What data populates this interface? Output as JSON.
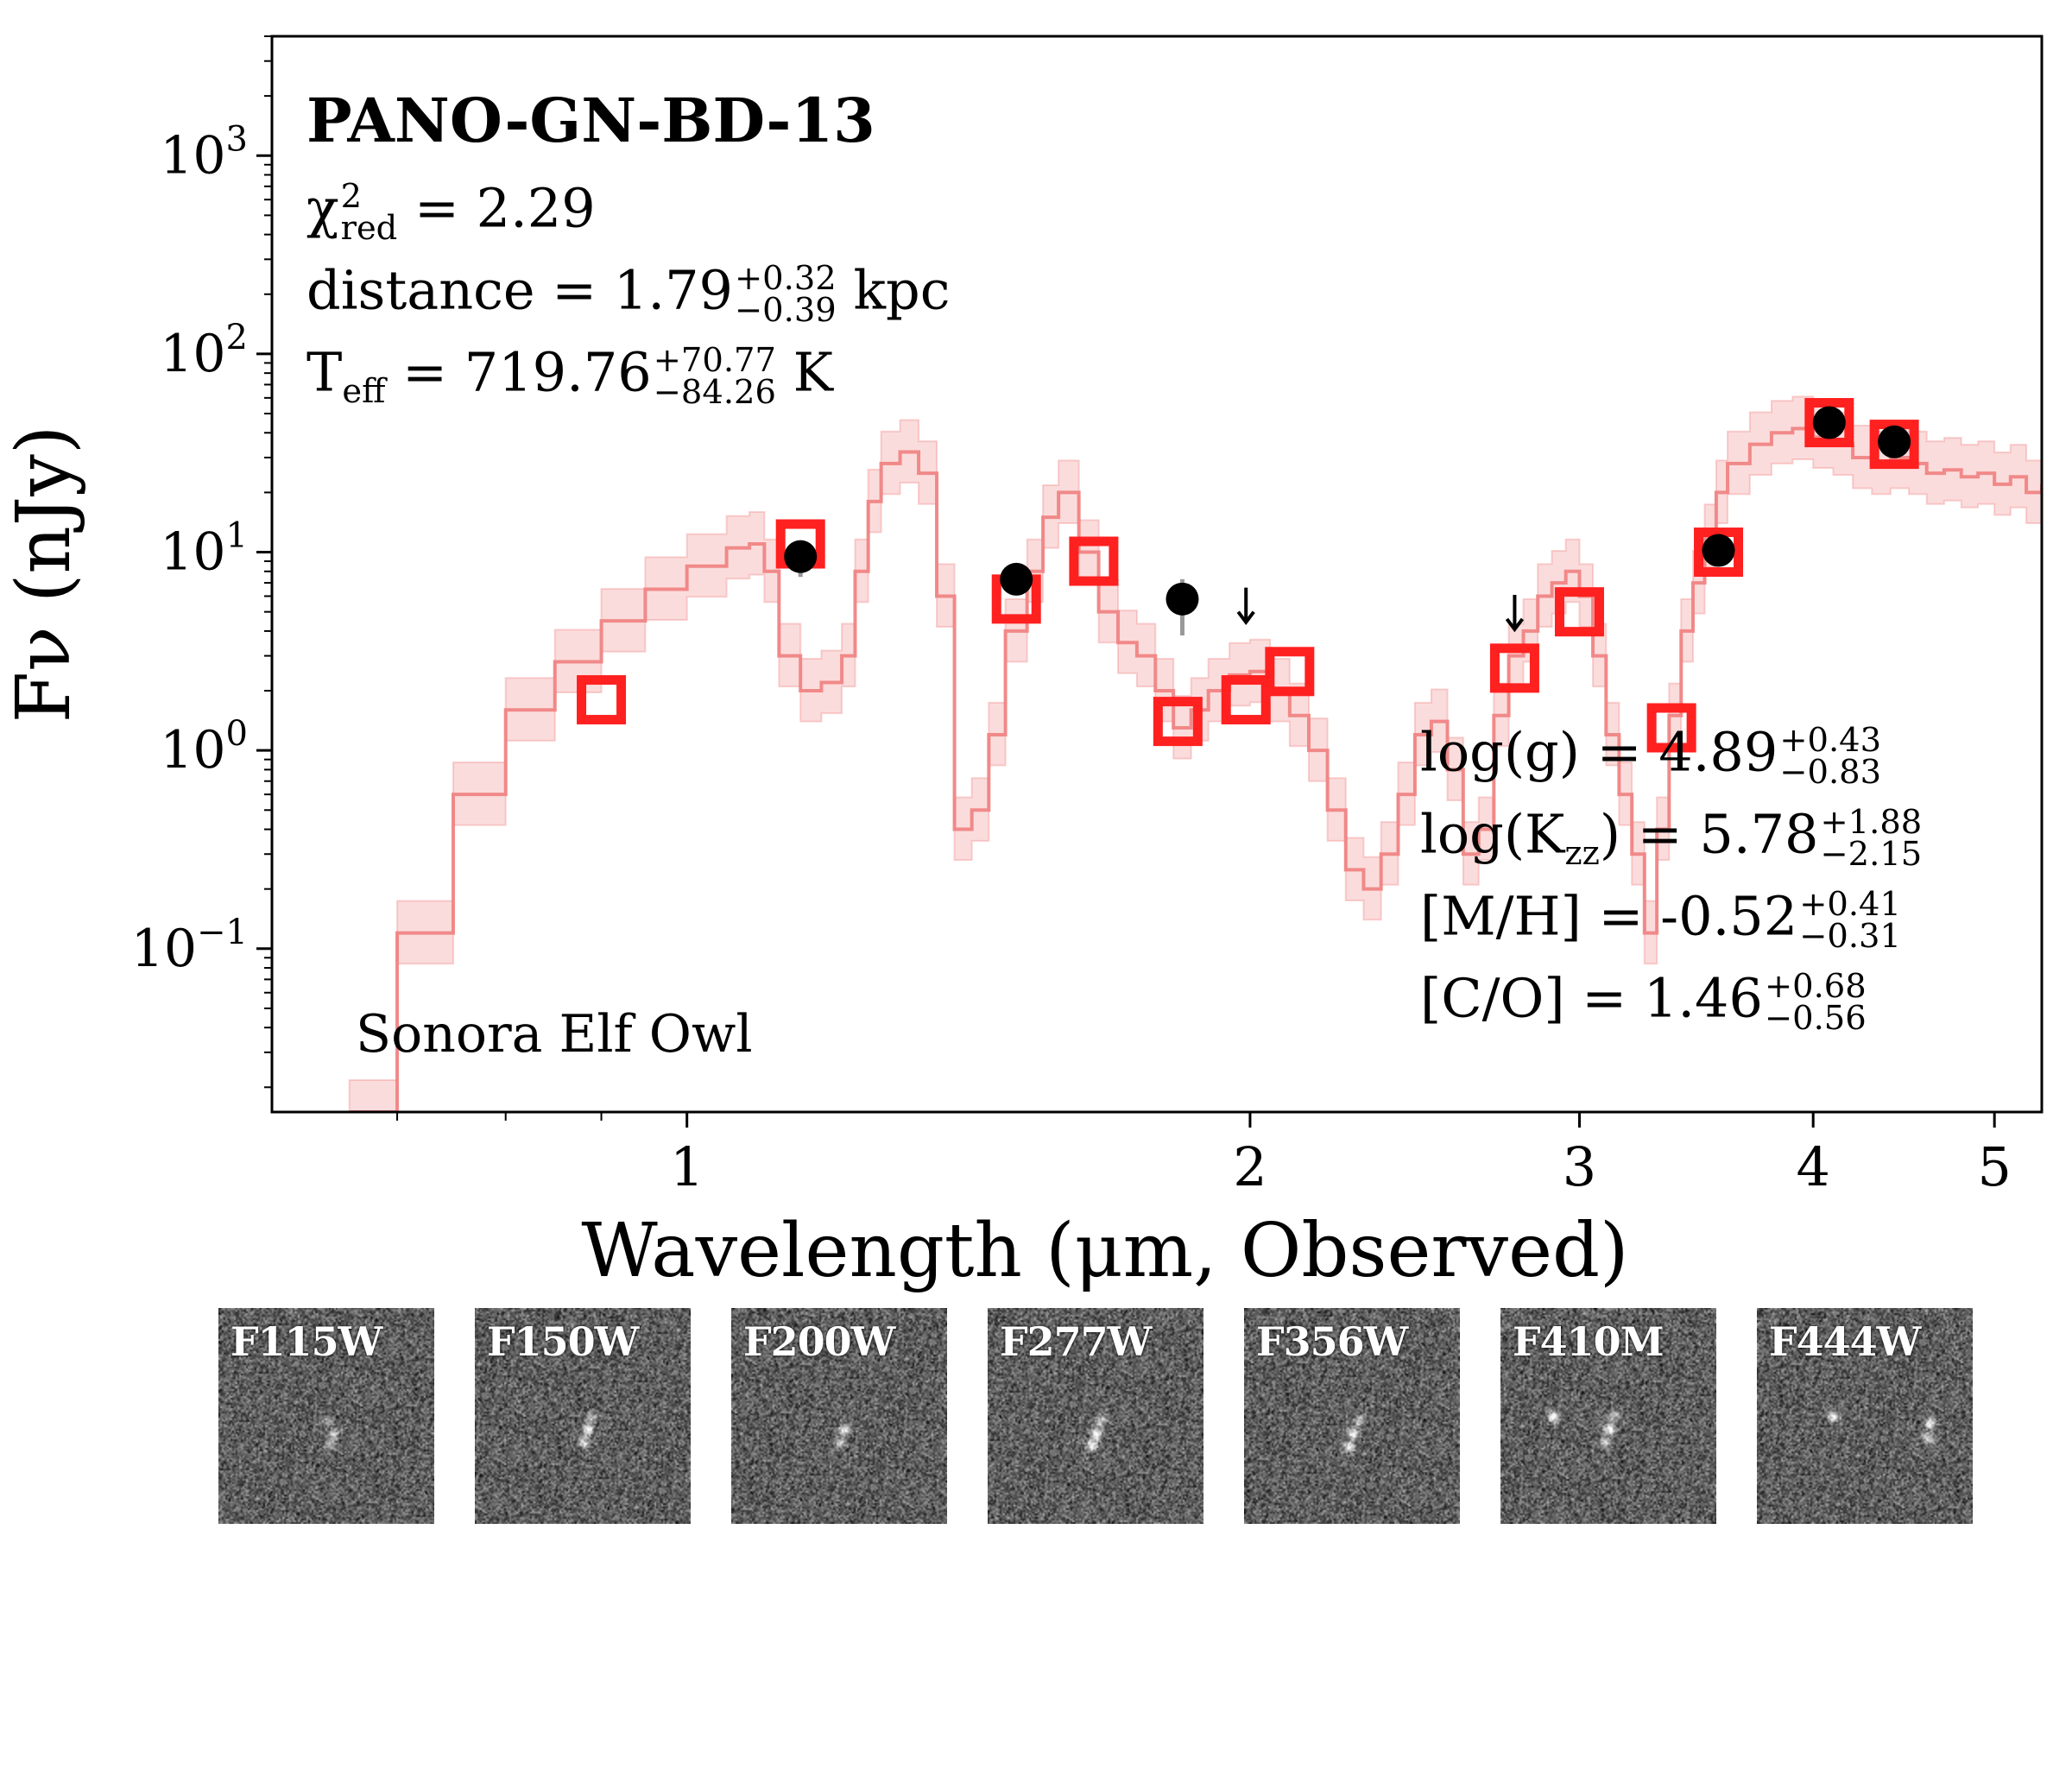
{
  "chart_data": {
    "type": "scatter",
    "title": "PANO-GN-BD-13",
    "xlabel": "Wavelength (μm, Observed)",
    "ylabel": "Fν (nJy)",
    "xscale": "log",
    "yscale": "log",
    "xlim": [
      0.6,
      5.3
    ],
    "ylim": [
      0.015,
      4000
    ],
    "xticks": [
      {
        "value": 1,
        "label": "1"
      },
      {
        "value": 2,
        "label": "2"
      },
      {
        "value": 3,
        "label": "3"
      },
      {
        "value": 4,
        "label": "4"
      },
      {
        "value": 5,
        "label": "5"
      }
    ],
    "yticks": [
      {
        "value": 0.1,
        "base": "10",
        "exp": "−1"
      },
      {
        "value": 1,
        "base": "10",
        "exp": "0"
      },
      {
        "value": 10,
        "base": "10",
        "exp": "1"
      },
      {
        "value": 100,
        "base": "10",
        "exp": "2"
      },
      {
        "value": 1000,
        "base": "10",
        "exp": "3"
      }
    ],
    "model_label": "Sonora Elf Owl",
    "model_spectrum": {
      "name": "Sonora Elf Owl model",
      "color": "#f08080",
      "x": [
        0.66,
        0.7,
        0.75,
        0.8,
        0.85,
        0.9,
        0.95,
        1.0,
        1.05,
        1.08,
        1.1,
        1.12,
        1.15,
        1.18,
        1.21,
        1.23,
        1.25,
        1.27,
        1.3,
        1.33,
        1.36,
        1.39,
        1.42,
        1.45,
        1.48,
        1.52,
        1.55,
        1.58,
        1.62,
        1.66,
        1.7,
        1.74,
        1.78,
        1.82,
        1.86,
        1.9,
        1.95,
        2.0,
        2.05,
        2.1,
        2.15,
        2.2,
        2.25,
        2.3,
        2.35,
        2.4,
        2.45,
        2.5,
        2.55,
        2.6,
        2.65,
        2.7,
        2.75,
        2.8,
        2.85,
        2.9,
        2.95,
        3.0,
        3.05,
        3.1,
        3.15,
        3.2,
        3.25,
        3.3,
        3.35,
        3.4,
        3.45,
        3.5,
        3.55,
        3.6,
        3.7,
        3.8,
        3.9,
        4.0,
        4.1,
        4.2,
        4.3,
        4.4,
        4.5,
        4.6,
        4.7,
        4.8,
        4.9,
        5.0,
        5.1,
        5.2,
        5.3
      ],
      "y": [
        0.015,
        0.12,
        0.6,
        1.6,
        2.8,
        4.5,
        6.5,
        8.5,
        10.5,
        11,
        8,
        3,
        2,
        2.2,
        3,
        8,
        18,
        28,
        32,
        25,
        6,
        0.4,
        0.5,
        1.2,
        4,
        8,
        15,
        20,
        10,
        5,
        3.5,
        3,
        2,
        1.3,
        1.6,
        2,
        2.4,
        2.5,
        2,
        1.5,
        1,
        0.5,
        0.25,
        0.2,
        0.3,
        0.6,
        1.2,
        1.4,
        0.8,
        0.3,
        0.4,
        1.5,
        3,
        4,
        6,
        7,
        8,
        6,
        3,
        1.2,
        0.6,
        0.3,
        0.12,
        0.4,
        1.5,
        4,
        7,
        12,
        20,
        28,
        35,
        40,
        42,
        38,
        35,
        30,
        28,
        30,
        28,
        25,
        26,
        24,
        25,
        22,
        24,
        20,
        22
      ]
    },
    "model_photometry": {
      "name": "Model photometry",
      "marker": "open-square",
      "color": "#ff2020",
      "x": [
        0.9,
        1.15,
        1.5,
        1.65,
        1.83,
        1.99,
        2.1,
        2.77,
        3.0,
        3.36,
        3.56,
        4.08,
        4.42
      ],
      "y": [
        1.8,
        11,
        5.8,
        9,
        1.4,
        1.8,
        2.5,
        2.6,
        5.0,
        1.3,
        10,
        45,
        35
      ]
    },
    "observed_photometry": {
      "name": "Observed photometry",
      "marker": "filled-circle",
      "color": "#000000",
      "x": [
        1.15,
        1.5,
        1.84,
        3.56,
        4.08,
        4.42
      ],
      "y": [
        9.5,
        7.3,
        5.8,
        10.2,
        45,
        36
      ],
      "yerr_low": [
        2.0,
        1.0,
        2.0,
        0.8,
        3,
        3
      ],
      "yerr_high": [
        1.5,
        1.0,
        1.5,
        0.8,
        3,
        3
      ]
    },
    "upper_limits": {
      "name": "Upper limits",
      "marker": "down-arrow",
      "x": [
        1.99,
        2.77
      ],
      "y": [
        5.0,
        4.6
      ]
    }
  },
  "annotations": {
    "object_name": "PANO-GN-BD-13",
    "chi2": {
      "symbol": "χ",
      "sup": "2",
      "sub": "red",
      "value": "= 2.29"
    },
    "distance": {
      "label": "distance = 1.79",
      "plus": "+0.32",
      "minus": "−0.39",
      "unit": "kpc"
    },
    "teff": {
      "label": "T",
      "sub": "eff",
      "value": "= 719.76",
      "plus": "+70.77",
      "minus": "−84.26",
      "unit": "K"
    },
    "logg": {
      "label": "log(g) = 4.89",
      "plus": "+0.43",
      "minus": "−0.83"
    },
    "logkzz": {
      "label": "log(K",
      "sub": "zz",
      "value": ") = 5.78",
      "plus": "+1.88",
      "minus": "−2.15"
    },
    "mh": {
      "label": "[M/H] = -0.52",
      "plus": "+0.41",
      "minus": "−0.31"
    },
    "co": {
      "label": "[C/O] = 1.46",
      "plus": "+0.68",
      "minus": "−0.56"
    }
  },
  "cutouts": [
    {
      "filter": "F115W",
      "seed": 11,
      "sources": [
        {
          "dx": 0.53,
          "dy": 0.58,
          "amp": 0.55
        },
        {
          "dx": 0.51,
          "dy": 0.63,
          "amp": 0.4
        },
        {
          "dx": 0.5,
          "dy": 0.52,
          "amp": 0.3
        }
      ]
    },
    {
      "filter": "F150W",
      "seed": 22,
      "sources": [
        {
          "dx": 0.52,
          "dy": 0.56,
          "amp": 0.9
        },
        {
          "dx": 0.5,
          "dy": 0.62,
          "amp": 0.7
        },
        {
          "dx": 0.54,
          "dy": 0.5,
          "amp": 0.5
        }
      ]
    },
    {
      "filter": "F200W",
      "seed": 33,
      "sources": [
        {
          "dx": 0.52,
          "dy": 0.56,
          "amp": 0.8
        },
        {
          "dx": 0.5,
          "dy": 0.62,
          "amp": 0.6
        }
      ]
    },
    {
      "filter": "F277W",
      "seed": 44,
      "sources": [
        {
          "dx": 0.5,
          "dy": 0.58,
          "amp": 1.0
        },
        {
          "dx": 0.48,
          "dy": 0.63,
          "amp": 0.9
        },
        {
          "dx": 0.52,
          "dy": 0.52,
          "amp": 0.6
        }
      ]
    },
    {
      "filter": "F356W",
      "seed": 55,
      "sources": [
        {
          "dx": 0.5,
          "dy": 0.58,
          "amp": 0.9
        },
        {
          "dx": 0.48,
          "dy": 0.64,
          "amp": 0.8
        },
        {
          "dx": 0.53,
          "dy": 0.52,
          "amp": 0.6
        }
      ]
    },
    {
      "filter": "F410M",
      "seed": 66,
      "sources": [
        {
          "dx": 0.5,
          "dy": 0.56,
          "amp": 1.0
        },
        {
          "dx": 0.48,
          "dy": 0.62,
          "amp": 0.7
        },
        {
          "dx": 0.52,
          "dy": 0.5,
          "amp": 0.6
        },
        {
          "dx": 0.24,
          "dy": 0.5,
          "amp": 1.0
        }
      ]
    },
    {
      "filter": "F444W",
      "seed": 77,
      "sources": [
        {
          "dx": 0.8,
          "dy": 0.53,
          "amp": 0.9
        },
        {
          "dx": 0.79,
          "dy": 0.6,
          "amp": 0.7
        },
        {
          "dx": 0.35,
          "dy": 0.5,
          "amp": 0.8
        }
      ]
    }
  ]
}
